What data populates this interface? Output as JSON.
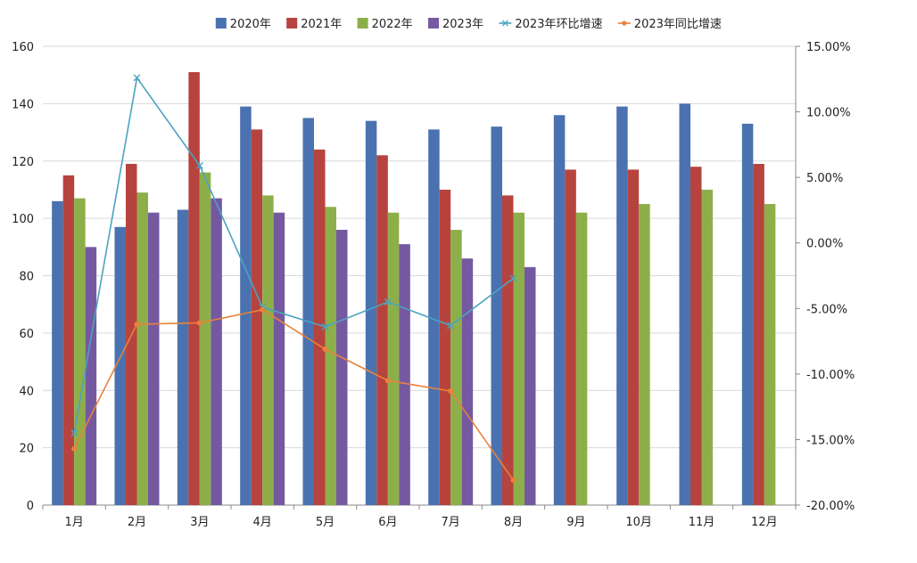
{
  "chart_data": {
    "type": "bar+line",
    "categories": [
      "1月",
      "2月",
      "3月",
      "4月",
      "5月",
      "6月",
      "7月",
      "8月",
      "9月",
      "10月",
      "11月",
      "12月"
    ],
    "bar_series": [
      {
        "name": "2020年",
        "color": "#4A72B0",
        "values": [
          106,
          97,
          103,
          139,
          135,
          134,
          131,
          132,
          136,
          139,
          140,
          133
        ]
      },
      {
        "name": "2021年",
        "color": "#B7433F",
        "values": [
          115,
          119,
          151,
          131,
          124,
          122,
          110,
          108,
          117,
          117,
          118,
          119
        ]
      },
      {
        "name": "2022年",
        "color": "#8DAF4A",
        "values": [
          107,
          109,
          116,
          108,
          104,
          102,
          96,
          102,
          102,
          105,
          110,
          105
        ]
      },
      {
        "name": "2023年",
        "color": "#7559A0",
        "values": [
          90,
          102,
          107,
          102,
          96,
          91,
          86,
          83,
          null,
          null,
          null,
          null
        ]
      }
    ],
    "line_series": [
      {
        "name": "2023年环比增速",
        "color": "#4BA3BF",
        "marker": "x",
        "values": [
          -14.5,
          12.6,
          5.9,
          -4.9,
          -6.4,
          -4.5,
          -6.3,
          -2.7,
          null,
          null,
          null,
          null
        ]
      },
      {
        "name": "2023年同比增速",
        "color": "#E8823A",
        "marker": "circle",
        "values": [
          -15.7,
          -6.2,
          -6.1,
          -5.1,
          -8.1,
          -10.5,
          -11.3,
          -18.1,
          null,
          null,
          null,
          null
        ]
      }
    ],
    "y_left": {
      "min": 0,
      "max": 160,
      "step": 20,
      "ticks": [
        "0",
        "20",
        "40",
        "60",
        "80",
        "100",
        "120",
        "140",
        "160"
      ]
    },
    "y_right": {
      "min": -20,
      "max": 15,
      "step": 5,
      "ticks": [
        "-20.00%",
        "-15.00%",
        "-10.00%",
        "-5.00%",
        "0.00%",
        "5.00%",
        "10.00%",
        "15.00%"
      ]
    },
    "legend_position": "top",
    "grid": "horizontal"
  }
}
